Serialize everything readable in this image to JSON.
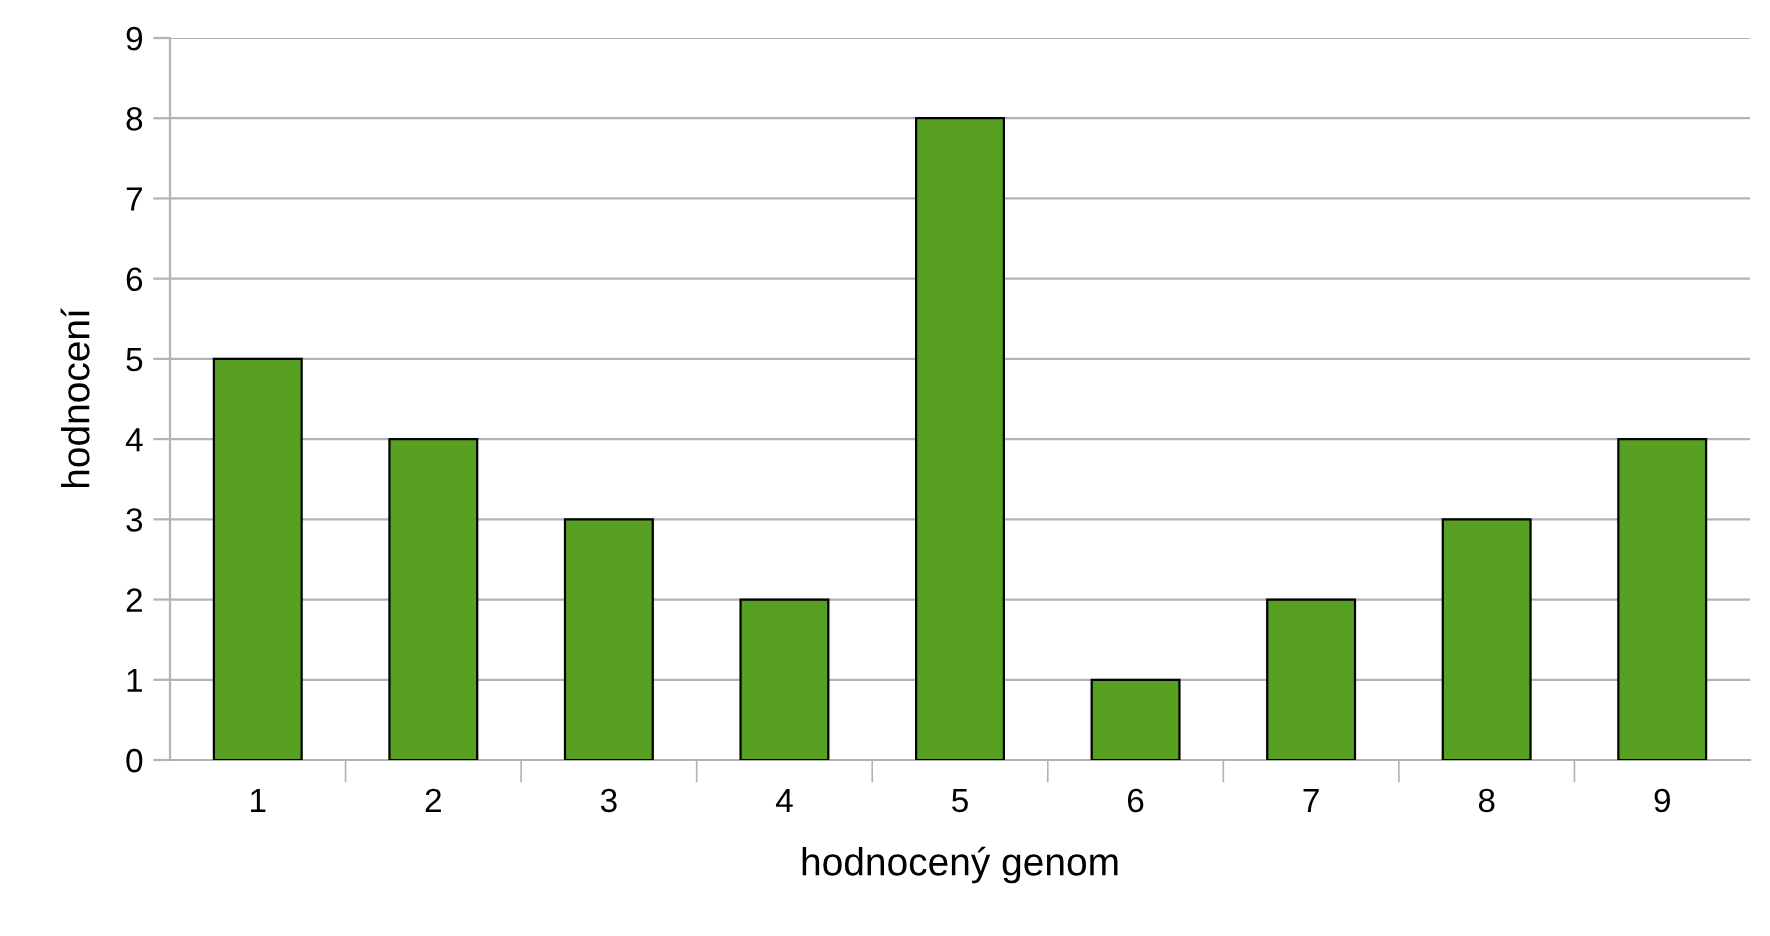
{
  "chart_data": {
    "type": "bar",
    "xlabel": "hodnocený genom",
    "ylabel": "hodnocení",
    "categories": [
      "1",
      "2",
      "3",
      "4",
      "5",
      "6",
      "7",
      "8",
      "9"
    ],
    "values": [
      5,
      4,
      3,
      2,
      8,
      1,
      2,
      3,
      4
    ],
    "color": "#58a021",
    "ylim": [
      0,
      9
    ],
    "yticks": [
      0,
      1,
      2,
      3,
      4,
      5,
      6,
      7,
      8,
      9
    ],
    "grid": "y",
    "legend": false
  }
}
